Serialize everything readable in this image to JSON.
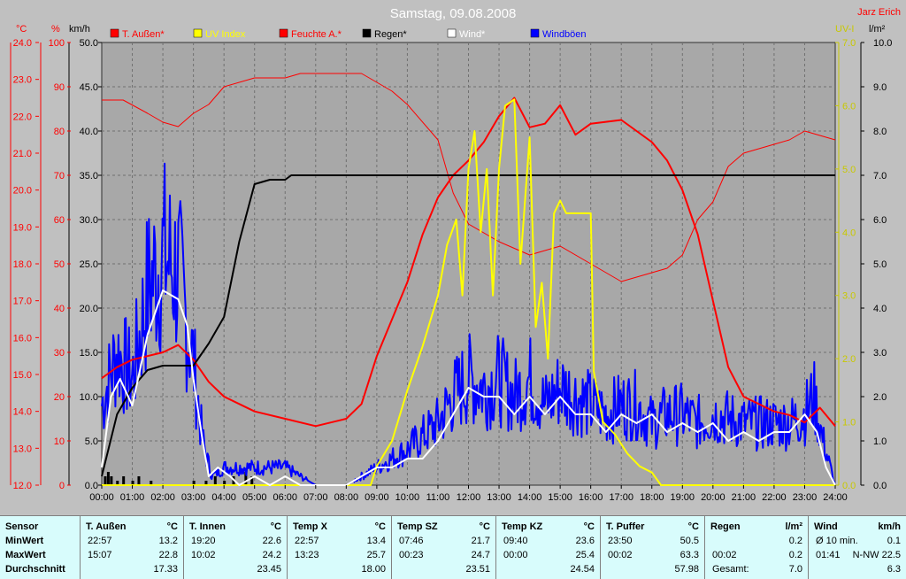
{
  "chart_data": {
    "type": "line",
    "title": "Samstag, 09.08.2008",
    "author": "Jarz Erich",
    "legend": [
      {
        "label": "T. Außen*",
        "color": "#ff0000"
      },
      {
        "label": "UV Index",
        "color": "#ffff00"
      },
      {
        "label": "Feuchte A.*",
        "color": "#ff0000"
      },
      {
        "label": "Regen*",
        "color": "#000000"
      },
      {
        "label": "Wind*",
        "color": "#ffffff"
      },
      {
        "label": "Windböen",
        "color": "#0000ff"
      }
    ],
    "axes": {
      "temp": {
        "label": "°C",
        "min": 12.0,
        "max": 24.0,
        "color": "#ff0000",
        "ticks": [
          "24.0",
          "23.0",
          "22.0",
          "21.0",
          "20.0",
          "19.0",
          "18.0",
          "17.0",
          "16.0",
          "15.0",
          "14.0",
          "13.0",
          "12.0"
        ]
      },
      "humidity": {
        "label": "%",
        "min": 0,
        "max": 100,
        "color": "#ff0000",
        "ticks": [
          "100",
          "90",
          "80",
          "70",
          "60",
          "50",
          "40",
          "30",
          "20",
          "10",
          "0"
        ]
      },
      "wind": {
        "label": "km/h",
        "min": 0,
        "max": 50,
        "color": "#000000",
        "ticks": [
          "50.0",
          "45.0",
          "40.0",
          "35.0",
          "30.0",
          "25.0",
          "20.0",
          "15.0",
          "10.0",
          "5.0",
          "0.0"
        ]
      },
      "uv": {
        "label": "UV-I",
        "min": 0,
        "max": 7,
        "color": "#c8c800",
        "ticks": [
          "7.0",
          "6.0",
          "5.0",
          "4.0",
          "3.0",
          "2.0",
          "1.0",
          "0.0"
        ]
      },
      "rain": {
        "label": "l/m²",
        "min": 0,
        "max": 10,
        "color": "#000000",
        "ticks": [
          "10.0",
          "9.0",
          "8.0",
          "7.0",
          "6.0",
          "5.0",
          "4.0",
          "3.0",
          "2.0",
          "1.0",
          "0.0"
        ]
      }
    },
    "x_ticks": [
      "00:00",
      "01:00",
      "02:00",
      "03:00",
      "04:00",
      "05:00",
      "06:00",
      "07:00",
      "08:00",
      "09:00",
      "10:00",
      "11:00",
      "12:00",
      "13:00",
      "14:00",
      "15:00",
      "16:00",
      "17:00",
      "18:00",
      "19:00",
      "20:00",
      "21:00",
      "22:00",
      "23:00",
      "24:00"
    ],
    "grid": true,
    "series": [
      {
        "name": "T. Außen*",
        "axis": "temp",
        "color": "#ff0000",
        "width": 2,
        "points": [
          [
            0,
            14.9
          ],
          [
            0.5,
            15.2
          ],
          [
            1,
            15.4
          ],
          [
            2,
            15.6
          ],
          [
            2.5,
            15.8
          ],
          [
            3,
            15.4
          ],
          [
            3.5,
            14.8
          ],
          [
            4,
            14.4
          ],
          [
            5,
            14.0
          ],
          [
            6,
            13.8
          ],
          [
            7,
            13.6
          ],
          [
            8,
            13.8
          ],
          [
            8.5,
            14.2
          ],
          [
            9,
            15.5
          ],
          [
            10,
            17.5
          ],
          [
            10.5,
            18.8
          ],
          [
            11,
            19.8
          ],
          [
            11.5,
            20.4
          ],
          [
            12,
            20.8
          ],
          [
            12.5,
            21.3
          ],
          [
            13,
            22.0
          ],
          [
            13.5,
            22.5
          ],
          [
            14,
            21.7
          ],
          [
            14.5,
            21.8
          ],
          [
            15,
            22.3
          ],
          [
            15.5,
            21.5
          ],
          [
            16,
            21.8
          ],
          [
            17,
            21.9
          ],
          [
            18,
            21.3
          ],
          [
            18.5,
            20.8
          ],
          [
            19,
            20.0
          ],
          [
            19.5,
            18.8
          ],
          [
            20,
            17.0
          ],
          [
            20.5,
            15.2
          ],
          [
            21,
            14.4
          ],
          [
            22,
            14.0
          ],
          [
            22.5,
            13.9
          ],
          [
            23,
            13.7
          ],
          [
            23.5,
            14.1
          ],
          [
            24,
            13.6
          ]
        ]
      },
      {
        "name": "Feuchte A.*",
        "axis": "humidity",
        "color": "#ff0000",
        "width": 1,
        "points": [
          [
            0,
            87
          ],
          [
            0.7,
            87
          ],
          [
            1.5,
            84
          ],
          [
            2,
            82
          ],
          [
            2.5,
            81
          ],
          [
            3,
            84
          ],
          [
            3.5,
            86
          ],
          [
            4,
            90
          ],
          [
            5,
            92
          ],
          [
            6,
            92
          ],
          [
            6.5,
            93
          ],
          [
            7,
            93
          ],
          [
            8,
            93
          ],
          [
            8.5,
            93
          ],
          [
            9,
            91
          ],
          [
            9.5,
            89
          ],
          [
            10,
            86
          ],
          [
            11,
            78
          ],
          [
            11.5,
            66
          ],
          [
            12,
            59
          ],
          [
            13,
            55
          ],
          [
            14,
            52
          ],
          [
            15,
            54
          ],
          [
            16,
            50
          ],
          [
            17,
            46
          ],
          [
            18,
            48
          ],
          [
            18.5,
            49
          ],
          [
            19,
            52
          ],
          [
            19.5,
            60
          ],
          [
            20,
            64
          ],
          [
            20.5,
            72
          ],
          [
            21,
            75
          ],
          [
            22,
            77
          ],
          [
            22.5,
            78
          ],
          [
            23,
            80
          ],
          [
            23.5,
            79
          ],
          [
            24,
            78
          ]
        ]
      },
      {
        "name": "Regen*",
        "axis": "rain",
        "color": "#000000",
        "width": 2,
        "points": [
          [
            0,
            0.2
          ],
          [
            0.5,
            1.6
          ],
          [
            1,
            2.2
          ],
          [
            1.5,
            2.6
          ],
          [
            2,
            2.7
          ],
          [
            3,
            2.7
          ],
          [
            3.5,
            3.2
          ],
          [
            4,
            3.8
          ],
          [
            4.5,
            5.5
          ],
          [
            5,
            6.8
          ],
          [
            5.5,
            6.9
          ],
          [
            6,
            6.9
          ],
          [
            6.2,
            7.0
          ],
          [
            24,
            7.0
          ]
        ]
      },
      {
        "name": "UV Index",
        "axis": "uv",
        "color": "#ffff00",
        "width": 2,
        "points": [
          [
            0,
            0
          ],
          [
            8.8,
            0
          ],
          [
            9,
            0.3
          ],
          [
            9.5,
            0.7
          ],
          [
            10,
            1.5
          ],
          [
            10.5,
            2.2
          ],
          [
            11,
            3.0
          ],
          [
            11.3,
            3.8
          ],
          [
            11.6,
            4.2
          ],
          [
            11.8,
            3.0
          ],
          [
            12,
            5.0
          ],
          [
            12.2,
            5.6
          ],
          [
            12.4,
            4.0
          ],
          [
            12.6,
            5.0
          ],
          [
            12.8,
            3.0
          ],
          [
            13,
            5.0
          ],
          [
            13.2,
            6.0
          ],
          [
            13.5,
            6.1
          ],
          [
            13.7,
            3.5
          ],
          [
            14,
            5.5
          ],
          [
            14.2,
            2.5
          ],
          [
            14.4,
            3.2
          ],
          [
            14.6,
            2.0
          ],
          [
            14.8,
            4.3
          ],
          [
            15,
            4.5
          ],
          [
            15.2,
            4.3
          ],
          [
            16,
            4.3
          ],
          [
            16.1,
            1.8
          ],
          [
            16.4,
            1.0
          ],
          [
            16.8,
            0.8
          ],
          [
            17.2,
            0.5
          ],
          [
            17.6,
            0.3
          ],
          [
            18,
            0.2
          ],
          [
            18.3,
            0.0
          ],
          [
            24,
            0.0
          ]
        ]
      },
      {
        "name": "Windböen",
        "axis": "wind",
        "color": "#0000ff",
        "width": 2,
        "noisy": true,
        "points": [
          [
            0,
            9
          ],
          [
            0.5,
            15
          ],
          [
            1,
            12
          ],
          [
            1.5,
            22
          ],
          [
            2,
            26
          ],
          [
            2.5,
            24
          ],
          [
            3,
            14
          ],
          [
            3.3,
            5
          ],
          [
            3.6,
            1
          ],
          [
            4,
            2
          ],
          [
            4.5,
            2
          ],
          [
            5,
            2
          ],
          [
            6,
            2
          ],
          [
            7,
            0
          ],
          [
            8,
            0
          ],
          [
            9,
            2
          ],
          [
            10,
            4
          ],
          [
            11,
            7
          ],
          [
            11.5,
            10
          ],
          [
            12,
            12
          ],
          [
            12.5,
            11
          ],
          [
            13,
            12
          ],
          [
            13.5,
            10
          ],
          [
            14,
            12
          ],
          [
            14.5,
            9
          ],
          [
            15,
            11
          ],
          [
            15.5,
            10
          ],
          [
            16,
            9
          ],
          [
            16.5,
            8
          ],
          [
            17,
            9
          ],
          [
            17.5,
            9
          ],
          [
            18,
            7
          ],
          [
            18.5,
            8
          ],
          [
            19,
            8
          ],
          [
            19.5,
            7
          ],
          [
            20,
            8
          ],
          [
            21,
            7
          ],
          [
            22,
            7
          ],
          [
            22.5,
            7
          ],
          [
            23,
            8
          ],
          [
            23.3,
            10
          ],
          [
            23.6,
            5
          ],
          [
            24,
            0
          ]
        ]
      },
      {
        "name": "Wind*",
        "axis": "wind",
        "color": "#ffffff",
        "width": 2,
        "points": [
          [
            0,
            2
          ],
          [
            0.3,
            10
          ],
          [
            0.6,
            12
          ],
          [
            1,
            9
          ],
          [
            1.5,
            17
          ],
          [
            2,
            22
          ],
          [
            2.5,
            21
          ],
          [
            2.8,
            18
          ],
          [
            3,
            12
          ],
          [
            3.3,
            5
          ],
          [
            3.5,
            1
          ],
          [
            3.8,
            2
          ],
          [
            4.2,
            1
          ],
          [
            4.5,
            0
          ],
          [
            5,
            1
          ],
          [
            5.5,
            0
          ],
          [
            6,
            1
          ],
          [
            6.5,
            0
          ],
          [
            8,
            0
          ],
          [
            8.5,
            1
          ],
          [
            9,
            2
          ],
          [
            9.5,
            2
          ],
          [
            10,
            3
          ],
          [
            10.5,
            3
          ],
          [
            11,
            5
          ],
          [
            11.5,
            8
          ],
          [
            12,
            11
          ],
          [
            12.5,
            10
          ],
          [
            13,
            10
          ],
          [
            13.5,
            8
          ],
          [
            14,
            10
          ],
          [
            14.5,
            8
          ],
          [
            15,
            10
          ],
          [
            15.5,
            8
          ],
          [
            16,
            8
          ],
          [
            16.5,
            6
          ],
          [
            17,
            8
          ],
          [
            17.5,
            7
          ],
          [
            18,
            8
          ],
          [
            18.5,
            6
          ],
          [
            19,
            7
          ],
          [
            19.5,
            6
          ],
          [
            20,
            7
          ],
          [
            20.5,
            5
          ],
          [
            21,
            6
          ],
          [
            21.5,
            5
          ],
          [
            22,
            6
          ],
          [
            22.5,
            6
          ],
          [
            23,
            8
          ],
          [
            23.4,
            6
          ],
          [
            23.7,
            2
          ],
          [
            24,
            0
          ]
        ]
      }
    ],
    "rain_bars": {
      "axis": "rain",
      "color": "#000000",
      "points": [
        [
          0.1,
          0.2
        ],
        [
          0.2,
          0.3
        ],
        [
          0.3,
          0.2
        ],
        [
          0.5,
          0.1
        ],
        [
          0.7,
          0.2
        ],
        [
          1.0,
          0.1
        ],
        [
          1.2,
          0.2
        ],
        [
          1.6,
          0.1
        ],
        [
          3.0,
          0.1
        ],
        [
          3.4,
          0.1
        ],
        [
          3.7,
          0.2
        ],
        [
          4.0,
          0.1
        ],
        [
          4.3,
          0.2
        ],
        [
          4.7,
          0.3
        ],
        [
          4.9,
          0.2
        ]
      ]
    }
  },
  "stats": {
    "sensor_header": "Sensor",
    "row_labels": [
      "MinWert",
      "MaxWert",
      "Durchschnitt"
    ],
    "columns": [
      {
        "title": "T. Außen",
        "unit": "°C",
        "rows": [
          [
            "22:57",
            "13.2"
          ],
          [
            "15:07",
            "22.8"
          ],
          [
            "",
            "17.33"
          ]
        ]
      },
      {
        "title": "T. Innen",
        "unit": "°C",
        "rows": [
          [
            "19:20",
            "22.6"
          ],
          [
            "10:02",
            "24.2"
          ],
          [
            "",
            "23.45"
          ]
        ]
      },
      {
        "title": "Temp X",
        "unit": "°C",
        "rows": [
          [
            "22:57",
            "13.4"
          ],
          [
            "13:23",
            "25.7"
          ],
          [
            "",
            "18.00"
          ]
        ]
      },
      {
        "title": "Temp SZ",
        "unit": "°C",
        "rows": [
          [
            "07:46",
            "21.7"
          ],
          [
            "00:23",
            "24.7"
          ],
          [
            "",
            "23.51"
          ]
        ]
      },
      {
        "title": "Temp KZ",
        "unit": "°C",
        "rows": [
          [
            "09:40",
            "23.6"
          ],
          [
            "00:00",
            "25.4"
          ],
          [
            "",
            "24.54"
          ]
        ]
      },
      {
        "title": "T. Puffer",
        "unit": "°C",
        "rows": [
          [
            "23:50",
            "50.5"
          ],
          [
            "00:02",
            "63.3"
          ],
          [
            "",
            "57.98"
          ]
        ]
      },
      {
        "title": "Regen",
        "unit": "l/m²",
        "rows": [
          [
            "",
            "0.2"
          ],
          [
            "00:02",
            "0.2"
          ],
          [
            "Gesamt:",
            "7.0"
          ]
        ]
      },
      {
        "title": "Wind",
        "unit": "km/h",
        "rows": [
          [
            "Ø 10 min.",
            "0.1"
          ],
          [
            "01:41",
            "N-NW 22.5"
          ],
          [
            "",
            "6.3"
          ]
        ]
      }
    ]
  }
}
